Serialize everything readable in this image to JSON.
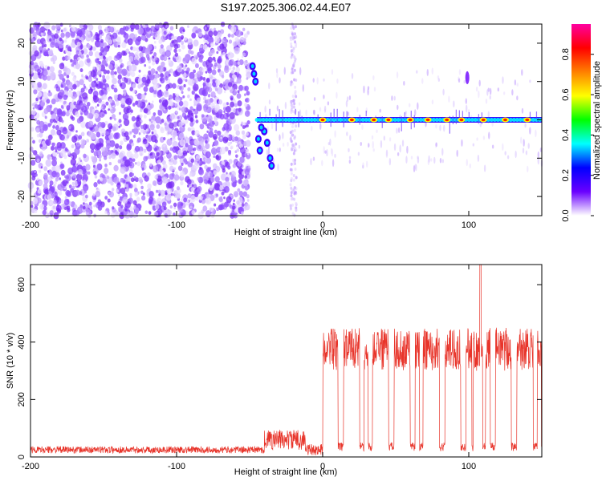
{
  "title": "S197.2025.306.02.44.E07",
  "chart_data": [
    {
      "type": "heatmap",
      "name": "spectrogram",
      "xlabel": "Height of straight line (km)",
      "ylabel": "Frequency (Hz)",
      "xlim": [
        -200,
        150
      ],
      "ylim": [
        -25,
        25
      ],
      "xticks": [
        -200,
        -100,
        0,
        100
      ],
      "yticks": [
        -20,
        -10,
        0,
        10,
        20
      ],
      "colorbar": {
        "label": "Normalized spectral amplitude",
        "range": [
          0,
          0.95
        ],
        "ticks": [
          0.0,
          0.2,
          0.4,
          0.6,
          0.8
        ],
        "colors": [
          "#ffffff",
          "#6a00ff",
          "#0000ff",
          "#00ffff",
          "#00ff00",
          "#ffff00",
          "#ff8000",
          "#ff0000",
          "#ff00a0"
        ]
      },
      "features": {
        "noise_region_x": [
          -200,
          -50
        ],
        "noise_band_x": [
          -22,
          -18
        ],
        "signal_line_start_x": -45,
        "signal_line_freq": 0,
        "signal_line_peaks_x": [
          0,
          20,
          35,
          45,
          60,
          72,
          85,
          95,
          110,
          125,
          140
        ]
      }
    },
    {
      "type": "line",
      "name": "snr",
      "xlabel": "Height of straight line (km)",
      "ylabel": "SNR (10 * v/v)",
      "xlim": [
        -200,
        150
      ],
      "ylim": [
        0,
        670
      ],
      "xticks": [
        -200,
        -100,
        0,
        100
      ],
      "yticks": [
        0,
        200,
        400,
        600
      ],
      "color": "#e8342a",
      "segments": [
        {
          "x_start": -200,
          "x_end": -40,
          "level": 25,
          "noise": 12
        },
        {
          "x_start": -40,
          "x_end": -12,
          "level": 60,
          "noise": 35
        },
        {
          "x_start": -12,
          "x_end": 0,
          "level": 25,
          "noise": 20
        },
        {
          "x_start": 0,
          "x_end": 150,
          "level": 380,
          "noise": 60
        }
      ],
      "peak": {
        "x": 108,
        "y": 670
      }
    }
  ]
}
